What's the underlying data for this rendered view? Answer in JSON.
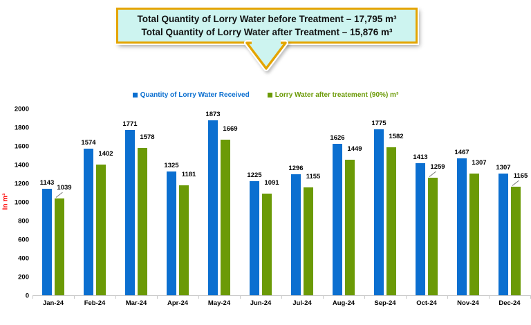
{
  "callout": {
    "line1": "Total Quantity of Lorry Water before Treatment – 17,795 m³",
    "line2": "Total Quantity of Lorry Water after Treatment – 15,876 m³",
    "fill": "#CDF4F0",
    "border": "#E4A400"
  },
  "chart_data": {
    "type": "bar",
    "title": "",
    "categories": [
      "Jan-24",
      "Feb-24",
      "Mar-24",
      "Apr-24",
      "May-24",
      "Jun-24",
      "Jul-24",
      "Aug-24",
      "Sep-24",
      "Oct-24",
      "Nov-24",
      "Dec-24"
    ],
    "series": [
      {
        "name": "Quantity of Lorry Water Received",
        "color": "#0B6FD0",
        "values": [
          1143,
          1574,
          1771,
          1325,
          1873,
          1225,
          1296,
          1626,
          1775,
          1413,
          1467,
          1307
        ]
      },
      {
        "name": "Lorry Water after treatement (90%) m³",
        "color": "#6B9A06",
        "values": [
          1039,
          1402,
          1578,
          1181,
          1669,
          1091,
          1155,
          1449,
          1582,
          1259,
          1307,
          1165
        ]
      }
    ],
    "xlabel": "",
    "ylabel": "In m³",
    "ylabel_color": "#FF0000",
    "ylim": [
      0,
      2000
    ],
    "ytick_step": 200,
    "grid": false,
    "legend_position": "top",
    "value_labels": true,
    "leader_line_categories": [
      "Jan-24",
      "Oct-24",
      "Dec-24"
    ]
  }
}
